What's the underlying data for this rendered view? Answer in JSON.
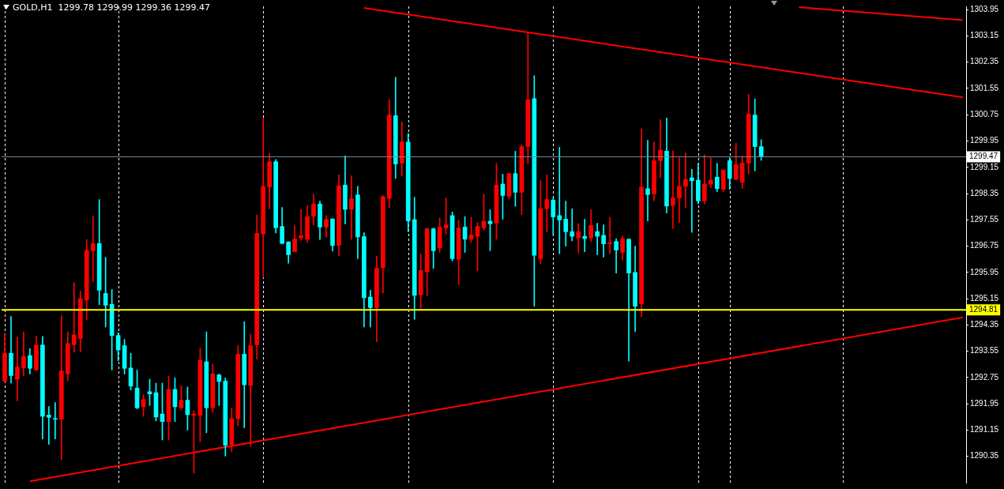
{
  "chart_data": {
    "type": "candlestick",
    "title": "GOLD,H1  1299.78 1299.99 1299.36 1299.47",
    "categories": [
      null,
      null,
      null,
      null,
      null,
      null,
      null,
      null,
      null,
      null,
      null,
      null,
      null,
      null,
      null,
      null,
      null,
      null,
      null,
      null,
      null,
      null,
      null,
      null,
      null,
      null,
      null,
      null,
      null,
      null,
      null,
      null,
      null,
      null,
      null,
      null,
      null,
      null,
      null,
      null,
      null,
      null,
      null,
      null,
      null,
      null,
      null,
      null,
      null,
      null,
      null,
      null,
      null,
      null,
      null,
      null,
      null,
      null,
      null,
      null,
      null,
      null,
      null,
      null,
      null,
      null,
      null,
      null,
      null,
      null,
      null,
      null,
      null,
      null,
      null,
      null,
      null,
      null,
      null,
      null,
      null,
      null,
      null,
      null,
      null,
      null,
      null,
      null,
      null,
      null,
      null,
      null,
      null,
      null,
      null,
      null,
      null,
      null,
      null,
      null,
      null,
      null,
      null,
      null,
      null,
      null,
      null,
      null,
      null,
      null,
      null,
      null,
      null,
      null,
      null,
      null,
      null,
      null,
      null,
      null,
      null,
      null,
      null,
      null,
      null,
      null,
      null,
      null,
      null,
      null,
      null,
      null,
      null,
      null,
      null,
      null,
      null,
      null,
      null,
      null,
      null,
      null,
      null,
      null,
      null,
      null,
      null,
      null,
      null,
      null,
      null,
      null,
      null
    ],
    "ohlc": [
      [
        1292.64,
        1294.1,
        1292.61,
        1293.49
      ],
      [
        1293.49,
        1294.61,
        1292.58,
        1292.81
      ],
      [
        1292.7,
        1293.98,
        1292.04,
        1293.07
      ],
      [
        1293.05,
        1294.14,
        1292.81,
        1293.39
      ],
      [
        1293.42,
        1293.63,
        1292.86,
        1293.03
      ],
      [
        1292.98,
        1294.0,
        1292.98,
        1293.74
      ],
      [
        1293.74,
        1294.0,
        1290.88,
        1291.57
      ],
      [
        1291.61,
        1291.87,
        1290.72,
        1291.54
      ],
      [
        1291.5,
        1291.99,
        1290.88,
        1291.48
      ],
      [
        1291.48,
        1294.63,
        1290.24,
        1292.95
      ],
      [
        1292.86,
        1294.14,
        1292.65,
        1293.79
      ],
      [
        1293.75,
        1295.64,
        1293.52,
        1294.05
      ],
      [
        1293.94,
        1295.38,
        1293.53,
        1295.15
      ],
      [
        1295.11,
        1296.95,
        1294.5,
        1296.62
      ],
      [
        1296.61,
        1297.65,
        1295.67,
        1296.83
      ],
      [
        1296.83,
        1298.17,
        1294.97,
        1295.41
      ],
      [
        1295.31,
        1296.41,
        1294.29,
        1294.95
      ],
      [
        1294.98,
        1295.43,
        1292.98,
        1294.03
      ],
      [
        1294.03,
        1294.12,
        1293.26,
        1293.59
      ],
      [
        1293.72,
        1293.91,
        1292.86,
        1293.03
      ],
      [
        1293.04,
        1293.49,
        1292.37,
        1292.49
      ],
      [
        1292.43,
        1292.98,
        1291.79,
        1291.83
      ],
      [
        1291.86,
        1292.23,
        1291.57,
        1292.08
      ],
      [
        1292.32,
        1292.7,
        1291.9,
        1292.25
      ],
      [
        1292.29,
        1292.58,
        1291.43,
        1291.55
      ],
      [
        1291.64,
        1292.58,
        1290.85,
        1291.41
      ],
      [
        1291.41,
        1292.79,
        1290.85,
        1292.39
      ],
      [
        1292.39,
        1292.74,
        1291.41,
        1291.86
      ],
      [
        1291.83,
        1292.5,
        1291.76,
        1292.06
      ],
      [
        1292.06,
        1292.46,
        1291.15,
        1291.62
      ],
      [
        1291.6,
        1291.74,
        1289.84,
        1291.64
      ],
      [
        1291.6,
        1293.65,
        1290.8,
        1293.28
      ],
      [
        1293.23,
        1294.14,
        1291.07,
        1291.83
      ],
      [
        1291.83,
        1293.16,
        1291.69,
        1292.86
      ],
      [
        1292.83,
        1292.86,
        1291.9,
        1292.63
      ],
      [
        1292.64,
        1292.74,
        1290.36,
        1290.69
      ],
      [
        1290.71,
        1291.82,
        1290.5,
        1291.5
      ],
      [
        1291.5,
        1293.73,
        1291.28,
        1293.46
      ],
      [
        1293.46,
        1294.45,
        1291.22,
        1292.53
      ],
      [
        1292.51,
        1294.07,
        1290.66,
        1293.72
      ],
      [
        1293.75,
        1297.7,
        1293.31,
        1297.14
      ],
      [
        1297.12,
        1300.65,
        1295.8,
        1298.57
      ],
      [
        1298.55,
        1299.57,
        1297.89,
        1299.32
      ],
      [
        1299.32,
        1299.39,
        1297.15,
        1297.31
      ],
      [
        1297.35,
        1297.93,
        1296.83,
        1296.83
      ],
      [
        1296.88,
        1296.88,
        1296.23,
        1296.49
      ],
      [
        1296.58,
        1297.37,
        1296.58,
        1296.97
      ],
      [
        1297.0,
        1297.86,
        1296.93,
        1297.07
      ],
      [
        1296.96,
        1297.98,
        1296.86,
        1297.65
      ],
      [
        1297.66,
        1298.33,
        1297.39,
        1298.03
      ],
      [
        1298.03,
        1298.12,
        1296.95,
        1297.33
      ],
      [
        1297.33,
        1297.68,
        1297.02,
        1297.56
      ],
      [
        1297.58,
        1297.58,
        1296.6,
        1296.77
      ],
      [
        1296.77,
        1298.92,
        1296.46,
        1298.59
      ],
      [
        1298.61,
        1299.5,
        1297.43,
        1297.87
      ],
      [
        1297.87,
        1298.89,
        1296.96,
        1298.19
      ],
      [
        1298.31,
        1298.57,
        1296.37,
        1297.03
      ],
      [
        1297.04,
        1297.16,
        1294.29,
        1295.18
      ],
      [
        1295.2,
        1295.41,
        1294.29,
        1294.88
      ],
      [
        1294.88,
        1296.44,
        1293.84,
        1296.08
      ],
      [
        1296.09,
        1298.29,
        1295.32,
        1298.26
      ],
      [
        1298.2,
        1301.21,
        1297.92,
        1300.74
      ],
      [
        1300.72,
        1301.89,
        1298.81,
        1299.25
      ],
      [
        1299.28,
        1300.53,
        1298.88,
        1299.92
      ],
      [
        1299.92,
        1300.18,
        1297.19,
        1297.52
      ],
      [
        1297.56,
        1298.24,
        1294.52,
        1295.25
      ],
      [
        1295.27,
        1296.51,
        1294.86,
        1296.01
      ],
      [
        1295.97,
        1297.3,
        1295.25,
        1297.28
      ],
      [
        1297.28,
        1297.3,
        1296.07,
        1296.61
      ],
      [
        1296.7,
        1297.61,
        1296.56,
        1297.33
      ],
      [
        1297.3,
        1298.22,
        1297.12,
        1297.4
      ],
      [
        1297.68,
        1297.79,
        1296.3,
        1296.37
      ],
      [
        1296.35,
        1297.54,
        1295.58,
        1297.3
      ],
      [
        1297.33,
        1297.65,
        1296.56,
        1296.96
      ],
      [
        1296.96,
        1297.63,
        1296.86,
        1297.09
      ],
      [
        1297.05,
        1297.47,
        1296.0,
        1297.35
      ],
      [
        1297.31,
        1298.33,
        1297.24,
        1297.51
      ],
      [
        1297.51,
        1297.86,
        1296.61,
        1297.43
      ],
      [
        1297.45,
        1299.27,
        1296.96,
        1298.61
      ],
      [
        1298.64,
        1298.94,
        1297.57,
        1298.29
      ],
      [
        1298.27,
        1298.96,
        1298.18,
        1298.96
      ],
      [
        1298.96,
        1299.64,
        1297.96,
        1298.39
      ],
      [
        1298.39,
        1299.83,
        1297.71,
        1299.78
      ],
      [
        1299.78,
        1303.25,
        1299.25,
        1301.21
      ],
      [
        1301.24,
        1301.94,
        1294.92,
        1296.47
      ],
      [
        1296.37,
        1298.75,
        1296.21,
        1297.89
      ],
      [
        1297.89,
        1298.92,
        1297.19,
        1298.17
      ],
      [
        1298.15,
        1298.22,
        1297.08,
        1297.64
      ],
      [
        1297.68,
        1299.76,
        1296.52,
        1297.55
      ],
      [
        1297.57,
        1298.12,
        1296.75,
        1297.19
      ],
      [
        1297.19,
        1297.89,
        1296.91,
        1297.05
      ],
      [
        1297.0,
        1297.44,
        1296.54,
        1297.19
      ],
      [
        1297.05,
        1297.57,
        1296.58,
        1296.98
      ],
      [
        1297.0,
        1297.86,
        1296.89,
        1297.38
      ],
      [
        1297.19,
        1297.45,
        1296.49,
        1297.05
      ],
      [
        1297.08,
        1297.4,
        1296.42,
        1296.82
      ],
      [
        1296.82,
        1297.63,
        1296.52,
        1296.86
      ],
      [
        1296.89,
        1296.98,
        1295.93,
        1296.63
      ],
      [
        1296.56,
        1297.05,
        1296.33,
        1296.98
      ],
      [
        1296.96,
        1296.98,
        1293.25,
        1295.93
      ],
      [
        1295.95,
        1296.75,
        1294.15,
        1294.92
      ],
      [
        1294.99,
        1300.32,
        1294.6,
        1298.55
      ],
      [
        1298.5,
        1299.97,
        1297.52,
        1298.32
      ],
      [
        1298.34,
        1299.92,
        1298.13,
        1299.35
      ],
      [
        1299.35,
        1300.6,
        1298.83,
        1299.67
      ],
      [
        1299.64,
        1300.65,
        1297.76,
        1297.97
      ],
      [
        1297.99,
        1299.65,
        1297.29,
        1298.22
      ],
      [
        1298.22,
        1299.44,
        1297.47,
        1298.57
      ],
      [
        1298.57,
        1299.58,
        1297.92,
        1298.78
      ],
      [
        1298.83,
        1299.09,
        1297.17,
        1298.74
      ],
      [
        1298.76,
        1299.27,
        1298.04,
        1298.13
      ],
      [
        1298.13,
        1299.53,
        1298.04,
        1298.64
      ],
      [
        1298.64,
        1299.44,
        1298.53,
        1298.76
      ],
      [
        1298.85,
        1299.27,
        1298.41,
        1298.5
      ],
      [
        1298.48,
        1299.07,
        1298.41,
        1299.07
      ],
      [
        1299.35,
        1299.44,
        1298.48,
        1298.81
      ],
      [
        1298.78,
        1299.88,
        1298.78,
        1299.23
      ],
      [
        1298.69,
        1299.49,
        1298.5,
        1299.28
      ],
      [
        1299.28,
        1301.37,
        1298.95,
        1300.77
      ],
      [
        1300.74,
        1301.23,
        1299.04,
        1299.78
      ],
      [
        1299.78,
        1299.99,
        1299.36,
        1299.47
      ],
      null,
      null,
      null,
      null,
      null,
      null,
      null,
      null,
      null,
      null,
      null,
      null,
      null,
      null,
      null,
      null,
      null,
      null,
      null,
      null,
      null,
      null,
      null,
      null,
      null,
      null,
      null,
      null,
      null,
      null,
      null,
      null
    ],
    "colors": [
      "#ff0000",
      "#00ffff",
      "#ff0000",
      "#ff0000",
      "#00ffff",
      "#ff0000",
      "#00ffff",
      "#00ffff",
      "#00ffff",
      "#ff0000",
      "#ff0000",
      "#ff0000",
      "#ff0000",
      "#ff0000",
      "#ff0000",
      "#00ffff",
      "#00ffff",
      "#00ffff",
      "#00ffff",
      "#00ffff",
      "#00ffff",
      "#00ffff",
      "#ff0000",
      "#00ffff",
      "#00ffff",
      "#00ffff",
      "#ff0000",
      "#00ffff",
      "#ff0000",
      "#00ffff",
      "#ff0000",
      "#ff0000",
      "#00ffff",
      "#ff0000",
      "#00ffff",
      "#00ffff",
      "#ff0000",
      "#ff0000",
      "#00ffff",
      "#ff0000",
      "#ff0000",
      "#ff0000",
      "#ff0000",
      "#00ffff",
      "#00ffff",
      "#00ffff",
      "#ff0000",
      "#ff0000",
      "#ff0000",
      "#ff0000",
      "#00ffff",
      "#ff0000",
      "#00ffff",
      "#ff0000",
      "#00ffff",
      "#ff0000",
      "#00ffff",
      "#00ffff",
      "#00ffff",
      "#ff0000",
      "#ff0000",
      "#ff0000",
      "#00ffff",
      "#ff0000",
      "#00ffff",
      "#00ffff",
      "#ff0000",
      "#ff0000",
      "#00ffff",
      "#ff0000",
      "#ff0000",
      "#00ffff",
      "#ff0000",
      "#00ffff",
      "#ff0000",
      "#ff0000",
      "#ff0000",
      "#00ffff",
      "#ff0000",
      "#00ffff",
      "#ff0000",
      "#00ffff",
      "#ff0000",
      "#ff0000",
      "#00ffff",
      "#ff0000",
      "#ff0000",
      "#00ffff",
      "#00ffff",
      "#00ffff",
      "#00ffff",
      "#ff0000",
      "#00ffff",
      "#ff0000",
      "#00ffff",
      "#00ffff",
      "#ff0000",
      "#00ffff",
      "#ff0000",
      "#00ffff",
      "#00ffff",
      "#ff0000",
      "#00ffff",
      "#ff0000",
      "#ff0000",
      "#00ffff",
      "#ff0000",
      "#ff0000",
      "#ff0000",
      "#00ffff",
      "#00ffff",
      "#ff0000",
      "#ff0000",
      "#00ffff",
      "#ff0000",
      "#00ffff",
      "#ff0000",
      "#ff0000",
      "#ff0000",
      "#00ffff",
      "#00ffff",
      null,
      null,
      null,
      null,
      null,
      null,
      null,
      null,
      null,
      null,
      null,
      null,
      null,
      null,
      null,
      null,
      null,
      null,
      null,
      null,
      null,
      null,
      null,
      null,
      null,
      null,
      null,
      null,
      null,
      null,
      null,
      null
    ],
    "series": [
      {
        "type": "line",
        "color": "#ff0000",
        "values": [
          null,
          null,
          null,
          null,
          null,
          null,
          null,
          null,
          null,
          null,
          null,
          null,
          null,
          null,
          null,
          null,
          null,
          null,
          null,
          null,
          null,
          null,
          null,
          null,
          null,
          null,
          null,
          null,
          null,
          null,
          null,
          null,
          null,
          null,
          null,
          null,
          null,
          null,
          null,
          null,
          null,
          null,
          null,
          null,
          null,
          null,
          null,
          null,
          null,
          null,
          null,
          null,
          null,
          null,
          null,
          null,
          null,
          1304.0,
          null,
          null,
          null,
          null,
          null,
          null,
          null,
          null,
          null,
          null,
          null,
          null,
          null,
          null,
          null,
          null,
          null,
          null,
          null,
          null,
          null,
          null,
          null,
          null,
          null,
          null,
          null,
          null,
          null,
          null,
          null,
          null,
          null,
          null,
          null,
          null,
          null,
          null,
          null,
          null,
          null,
          null,
          null,
          null,
          null,
          null,
          null,
          null,
          null,
          null,
          null,
          null,
          null,
          null,
          null,
          null,
          null,
          null,
          null,
          null,
          null,
          null,
          null,
          null,
          null,
          null,
          null,
          null,
          null,
          null,
          null,
          null,
          null,
          null,
          null,
          null,
          null,
          null,
          null,
          null,
          null,
          null,
          null,
          null,
          null,
          null,
          null,
          null,
          null,
          null,
          null,
          null,
          null,
          null,
          1301.28
        ]
      },
      {
        "type": "line",
        "color": "#ff0000",
        "values": [
          null,
          null,
          null,
          null,
          null,
          null,
          null,
          null,
          null,
          null,
          null,
          null,
          null,
          null,
          null,
          null,
          null,
          null,
          null,
          null,
          null,
          null,
          null,
          null,
          null,
          null,
          null,
          null,
          null,
          null,
          null,
          null,
          null,
          null,
          null,
          null,
          null,
          null,
          null,
          null,
          null,
          null,
          null,
          null,
          null,
          null,
          null,
          null,
          null,
          null,
          null,
          null,
          null,
          null,
          null,
          null,
          null,
          null,
          null,
          null,
          null,
          null,
          null,
          null,
          null,
          null,
          null,
          null,
          null,
          null,
          null,
          null,
          null,
          null,
          null,
          null,
          null,
          null,
          null,
          null,
          null,
          null,
          null,
          null,
          null,
          null,
          null,
          null,
          null,
          null,
          null,
          null,
          null,
          null,
          null,
          null,
          null,
          null,
          null,
          null,
          null,
          null,
          null,
          null,
          null,
          null,
          null,
          null,
          null,
          null,
          null,
          null,
          null,
          null,
          null,
          null,
          null,
          null,
          null,
          null,
          null,
          null,
          null,
          null,
          null,
          null,
          1304.02,
          null,
          null,
          null,
          null,
          null,
          null,
          null,
          null,
          null,
          null,
          null,
          null,
          null,
          null,
          null,
          null,
          null,
          null,
          null,
          null,
          null,
          null,
          null,
          null,
          null,
          1303.63
        ]
      },
      {
        "type": "line",
        "color": "#ff0000",
        "values": [
          null,
          null,
          null,
          null,
          1289.59,
          null,
          null,
          null,
          null,
          null,
          null,
          null,
          null,
          null,
          null,
          null,
          null,
          null,
          null,
          null,
          null,
          null,
          null,
          null,
          null,
          null,
          null,
          null,
          null,
          null,
          null,
          null,
          null,
          null,
          null,
          null,
          null,
          null,
          null,
          null,
          null,
          null,
          null,
          null,
          null,
          null,
          null,
          null,
          null,
          null,
          null,
          null,
          null,
          null,
          null,
          null,
          null,
          null,
          null,
          null,
          null,
          null,
          null,
          null,
          null,
          null,
          null,
          null,
          null,
          null,
          null,
          null,
          null,
          null,
          null,
          null,
          null,
          null,
          null,
          null,
          null,
          null,
          null,
          null,
          null,
          null,
          null,
          null,
          null,
          null,
          null,
          null,
          null,
          null,
          null,
          null,
          null,
          null,
          null,
          null,
          null,
          null,
          null,
          null,
          null,
          null,
          null,
          null,
          null,
          null,
          null,
          null,
          null,
          null,
          null,
          null,
          null,
          null,
          null,
          null,
          null,
          null,
          null,
          null,
          null,
          null,
          null,
          null,
          null,
          null,
          null,
          null,
          null,
          null,
          null,
          null,
          null,
          null,
          null,
          null,
          null,
          null,
          null,
          null,
          null,
          null,
          null,
          null,
          null,
          null,
          null,
          null,
          1294.58
        ]
      }
    ],
    "ylim": [
      1289.55,
      1304.05
    ],
    "yticks": [
      1290.35,
      1291.15,
      1291.95,
      1292.75,
      1293.55,
      1294.35,
      1295.15,
      1295.95,
      1296.75,
      1297.55,
      1298.35,
      1299.15,
      1299.95,
      1300.75,
      1301.55,
      1302.35,
      1303.15,
      1303.95
    ],
    "ref_lines": [
      {
        "axis": "y",
        "value": 1294.81,
        "label": "1294.81",
        "color": "#ffff00"
      },
      {
        "axis": "y",
        "value": 1299.47,
        "label": "1299.47",
        "color": "#778899"
      }
    ],
    "tick_labels": "y"
  }
}
